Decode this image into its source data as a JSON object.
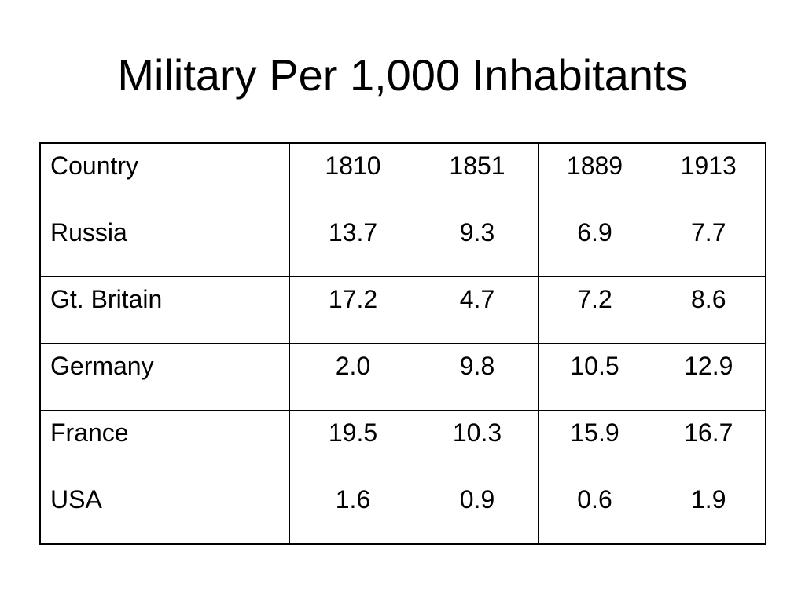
{
  "slide": {
    "title": "Military Per 1,000 Inhabitants"
  },
  "table": {
    "header": [
      "Country",
      "1810",
      "1851",
      "1889",
      "1913"
    ],
    "rows": [
      [
        "Russia",
        "13.7",
        "9.3",
        "6.9",
        "7.7"
      ],
      [
        "Gt. Britain",
        "17.2",
        "4.7",
        "7.2",
        "8.6"
      ],
      [
        "Germany",
        "2.0",
        "9.8",
        "10.5",
        "12.9"
      ],
      [
        "France",
        "19.5",
        "10.3",
        "15.9",
        "16.7"
      ],
      [
        "USA",
        "1.6",
        "0.9",
        "0.6",
        "1.9"
      ]
    ]
  },
  "colors": {
    "background": "#ffffff",
    "text": "#000000",
    "border": "#000000"
  }
}
